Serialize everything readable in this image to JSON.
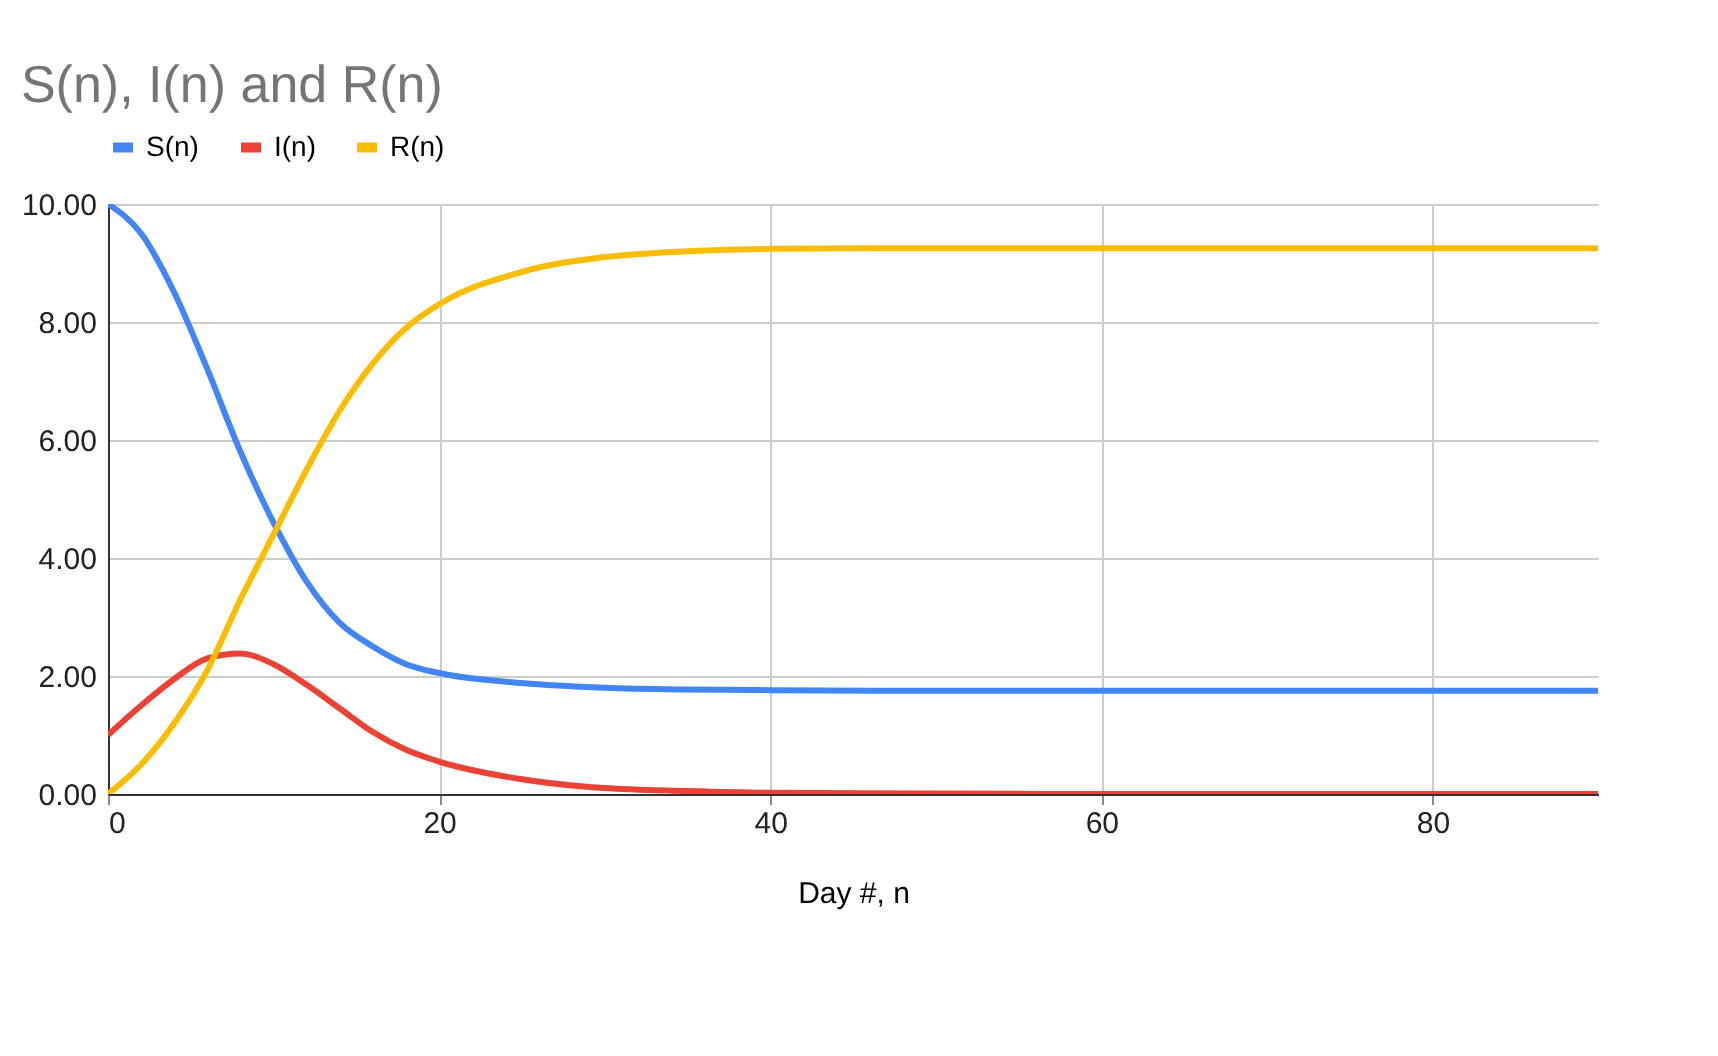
{
  "chart_data": {
    "type": "line",
    "title": "S(n), I(n) and R(n)",
    "xlabel": "Day #, n",
    "x": [
      0,
      2,
      4,
      6,
      8,
      10,
      12,
      14,
      16,
      18,
      20,
      25,
      30,
      35,
      40,
      50,
      60,
      70,
      80,
      90
    ],
    "series": [
      {
        "name": "S(n)",
        "color": "#4285f4",
        "values": [
          10,
          9.5,
          8.5,
          7.2,
          5.8,
          4.6,
          3.6,
          2.9,
          2.5,
          2.2,
          2.05,
          1.88,
          1.8,
          1.77,
          1.76,
          1.75,
          1.75,
          1.75,
          1.75,
          1.75
        ]
      },
      {
        "name": "I(n)",
        "color": "#ea4335",
        "values": [
          1.0,
          1.5,
          1.95,
          2.3,
          2.38,
          2.2,
          1.85,
          1.45,
          1.05,
          0.75,
          0.55,
          0.25,
          0.1,
          0.05,
          0.02,
          0.01,
          0,
          0,
          0,
          0
        ]
      },
      {
        "name": "R(n)",
        "color": "#fbbc04",
        "values": [
          0,
          0.5,
          1.2,
          2.1,
          3.3,
          4.4,
          5.5,
          6.5,
          7.3,
          7.9,
          8.3,
          8.85,
          9.1,
          9.2,
          9.24,
          9.25,
          9.25,
          9.25,
          9.25,
          9.25
        ]
      }
    ],
    "xlim": [
      0,
      90
    ],
    "xticks": [
      0,
      20,
      40,
      60,
      80
    ],
    "ylim": [
      0,
      10
    ],
    "yticks": [
      {
        "value": 0,
        "label": "0.00"
      },
      {
        "value": 2,
        "label": "2.00"
      },
      {
        "value": 4,
        "label": "4.00"
      },
      {
        "value": 6,
        "label": "6.00"
      },
      {
        "value": 8,
        "label": "8.00"
      },
      {
        "value": 10,
        "label": "10.00"
      }
    ],
    "grid": true,
    "legend": "top",
    "marker": "none",
    "line_style": "solid"
  }
}
